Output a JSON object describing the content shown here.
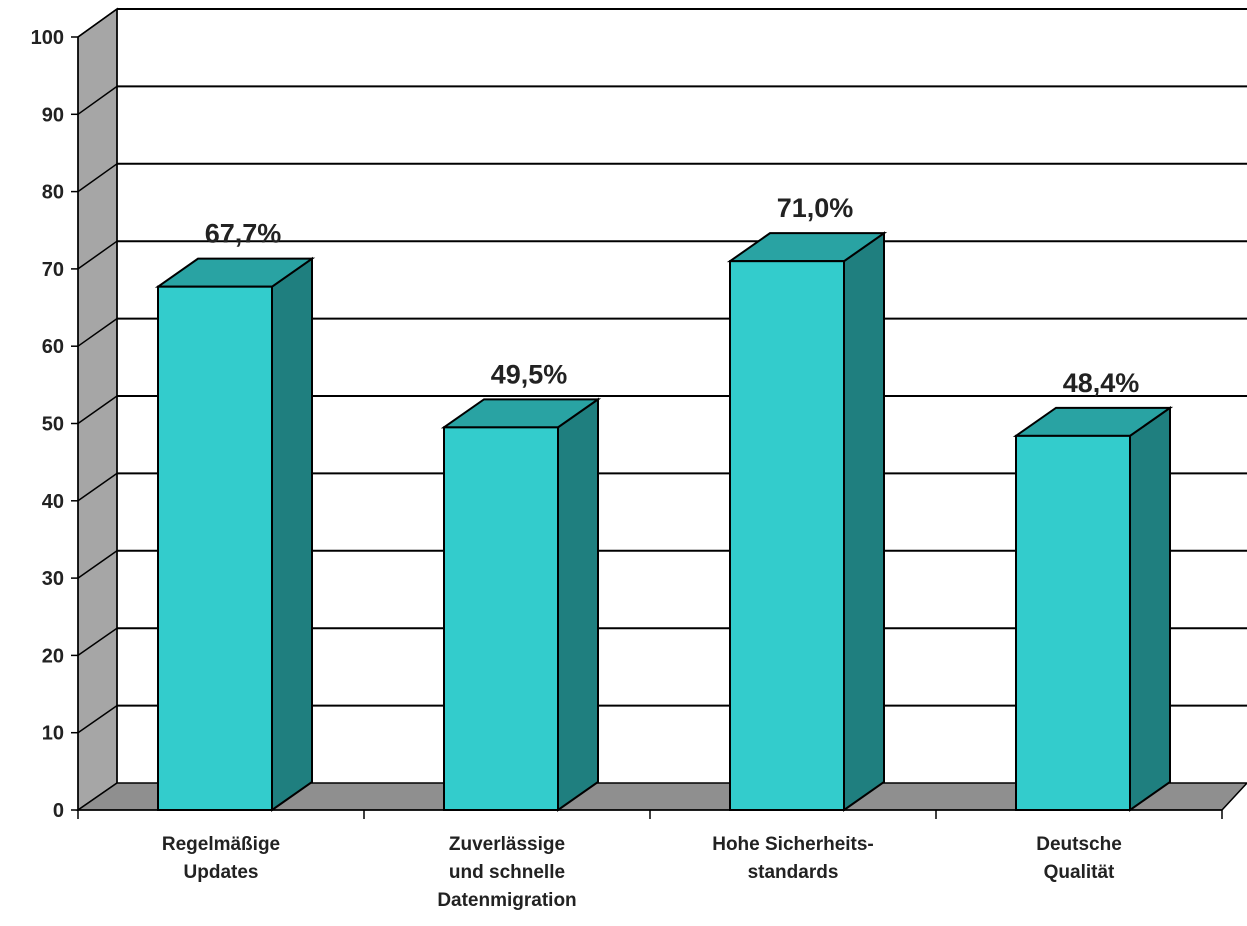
{
  "chart_data": {
    "type": "bar",
    "style": "3d-column",
    "title": "",
    "xlabel": "",
    "ylabel": "",
    "ylim": [
      0,
      100
    ],
    "yticks": [
      0,
      10,
      20,
      30,
      40,
      50,
      60,
      70,
      80,
      90,
      100
    ],
    "grid": true,
    "legend": "none",
    "categories": [
      [
        "Regelmäßige",
        "Updates"
      ],
      [
        "Zuverlässige",
        "und schnelle",
        "Datenmigration"
      ],
      [
        "Hohe Sicherheits-",
        "standards"
      ],
      [
        "Deutsche",
        "Qualität"
      ]
    ],
    "values": [
      67.7,
      49.5,
      71.0,
      48.4
    ],
    "data_labels": [
      "67,7%",
      "49,5%",
      "71,0%",
      "48,4%"
    ],
    "colors": {
      "bar_front": "#33cccc",
      "bar_top": "#29a3a3",
      "bar_side": "#1f7f7f",
      "wall": "#ffffff",
      "side_wall": "#a6a6a6",
      "floor": "#8f8f8f",
      "grid": "#000000"
    }
  }
}
